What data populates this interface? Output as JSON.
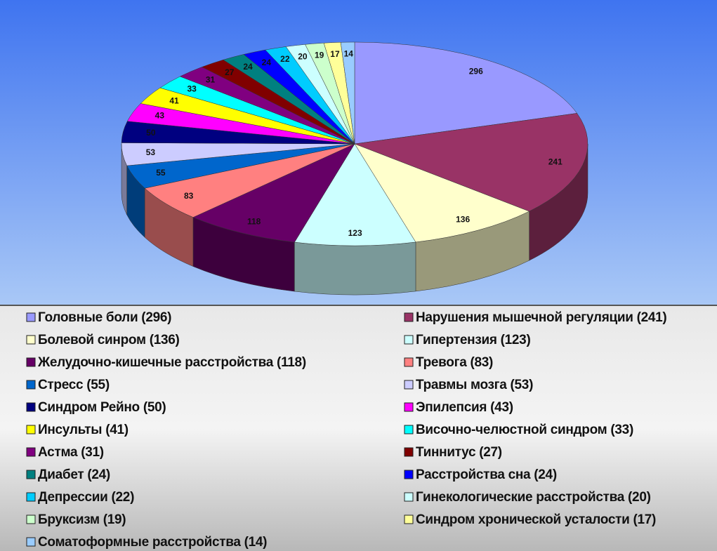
{
  "chart_data": {
    "type": "pie3d",
    "categories": [
      "Головные боли (296)",
      "Нарушения мышечной регуляции (241)",
      "Болевой синром (136)",
      "Гипертензия (123)",
      "Желудочно-кишечные расстройства (118)",
      "Тревога (83)",
      "Стресс (55)",
      "Травмы мозга (53)",
      "Синдром Рейно (50)",
      "Эпилепсия (43)",
      "Инсульты (41)",
      "Височно-челюстной синдром (33)",
      "Астма (31)",
      "Тиннитус (27)",
      "Диабет (24)",
      "Расстройства сна (24)",
      "Депрессии (22)",
      "Гинекологические расстройства (20)",
      "Бруксизм (19)",
      "Синдром хронической усталости (17)",
      "Соматоформные расстройства (14)"
    ],
    "values": [
      296,
      241,
      136,
      123,
      118,
      83,
      55,
      53,
      50,
      43,
      41,
      33,
      31,
      27,
      24,
      24,
      22,
      20,
      19,
      17,
      14
    ],
    "colors": [
      "#9999ff",
      "#993366",
      "#ffffcc",
      "#ccffff",
      "#660066",
      "#ff8080",
      "#0066cc",
      "#ccccff",
      "#000080",
      "#ff00ff",
      "#ffff00",
      "#00ffff",
      "#800080",
      "#800000",
      "#008080",
      "#0000ff",
      "#00ccff",
      "#ccffff",
      "#ccffcc",
      "#ffff99",
      "#99ccff"
    ],
    "legend": "bottom"
  }
}
